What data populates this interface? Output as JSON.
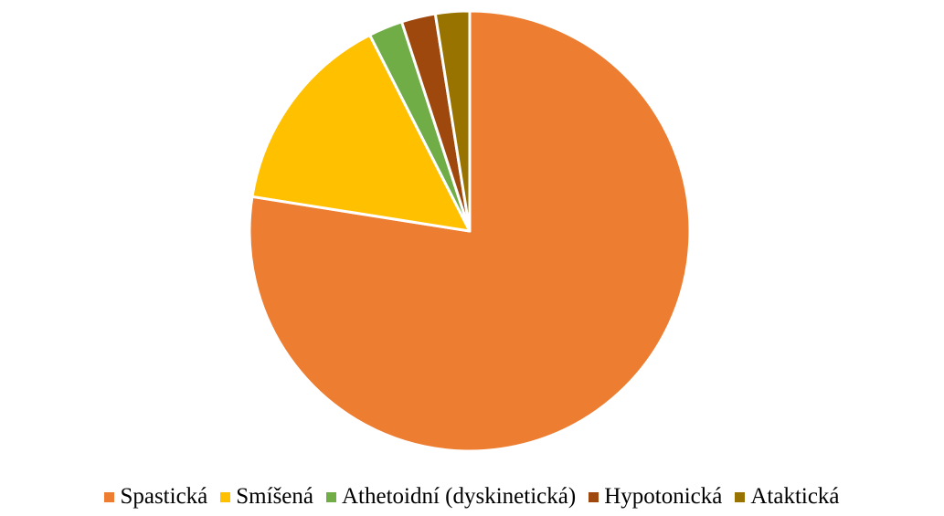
{
  "chart_data": {
    "type": "pie",
    "categories": [
      "Spastická",
      "Smíšená",
      "Athetoidní (dyskinetická)",
      "Hypotonická",
      "Ataktická"
    ],
    "values": [
      77.5,
      15,
      2.5,
      2.5,
      2.5
    ],
    "colors": [
      "#ED7D31",
      "#FFC000",
      "#70AD47",
      "#9E480E",
      "#997300"
    ],
    "legend": "bottom"
  }
}
